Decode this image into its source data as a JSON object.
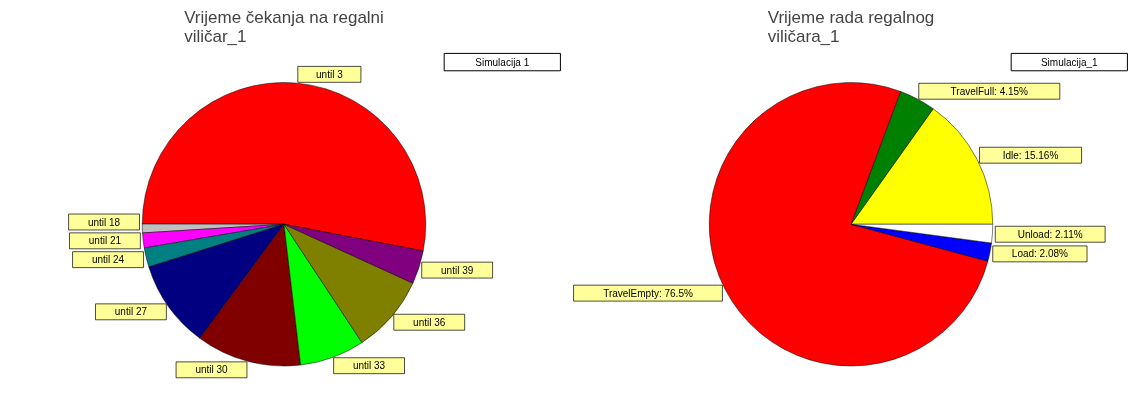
{
  "chart_data": [
    {
      "type": "pie",
      "title": "Vrijeme čekanja na regalni viličar_1",
      "categories": [
        "until 3",
        "until 18",
        "until 21",
        "until 24",
        "until 27",
        "until 30",
        "until 33",
        "until 36",
        "until 39"
      ],
      "values": [
        53,
        1,
        1.7,
        2.2,
        10,
        12,
        7.4,
        8.9,
        3.8
      ],
      "colors": [
        "#ff0000",
        "#c0c0c0",
        "#ff00ff",
        "#008080",
        "#000080",
        "#800000",
        "#00ff00",
        "#808000",
        "#800080"
      ],
      "annotations": [
        "Simulacija 1"
      ]
    },
    {
      "type": "pie",
      "title": "Vrijeme rada regalnog viličara_1",
      "categories": [
        "Idle",
        "TravelFull",
        "TravelEmpty",
        "Load",
        "Unload"
      ],
      "values": [
        15.16,
        4.15,
        76.5,
        2.08,
        2.11
      ],
      "value_labels": [
        "15.16%",
        "4.15%",
        "76.5%",
        "2.08%",
        "2.11%"
      ],
      "colors": [
        "#ffff00",
        "#008000",
        "#ff0000",
        "#0000ff",
        "#ffffff"
      ],
      "annotations": [
        "Simulacija_1"
      ]
    }
  ]
}
